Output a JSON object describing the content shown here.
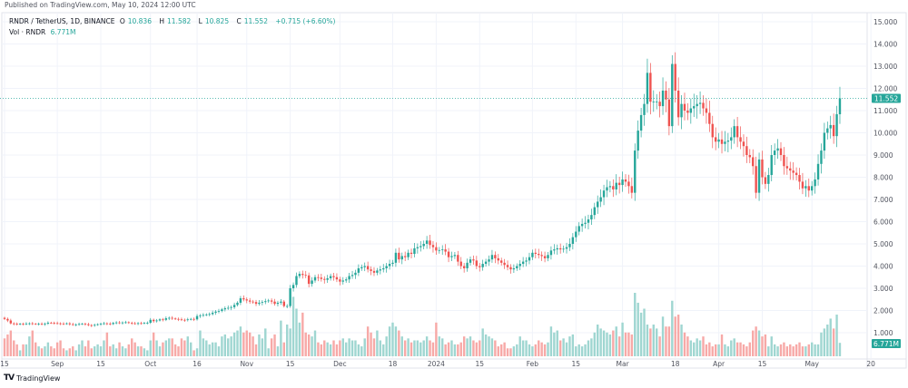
{
  "published": "Published on TradingView.com, May 10, 2024 12:00 UTC",
  "legend": {
    "symbol": "RNDR / TetherUS, 1D, BINANCE",
    "o_label": "O",
    "o": "10.836",
    "h_label": "H",
    "h": "11.582",
    "l_label": "L",
    "l": "10.825",
    "c_label": "C",
    "c": "11.552",
    "change": "+0.715 (+6.60%)",
    "vol_label": "Vol · RNDR",
    "vol": "6.771M"
  },
  "footer": {
    "logo": "TV",
    "brand": "TradingView"
  },
  "colors": {
    "up": "#26a69a",
    "down": "#ef5350",
    "up_volume": "#9fd6d1",
    "down_volume": "#f7a9a7",
    "grid": "#f0f3fa",
    "text": "#50535e"
  },
  "chart_data": {
    "type": "candlestick",
    "start_date": "2023-08-15",
    "interval": "1D",
    "ylim": [
      0,
      15.4
    ],
    "grid": true,
    "price_ticks": [
      "15.000",
      "14.000",
      "13.000",
      "12.000",
      "11.000",
      "10.000",
      "9.000",
      "8.000",
      "7.000",
      "6.000",
      "5.000",
      "4.000",
      "3.000",
      "2.000",
      "1.000"
    ],
    "price_tick_values": [
      15,
      14,
      13,
      12,
      11,
      10,
      9,
      8,
      7,
      6,
      5,
      4,
      3,
      2,
      1
    ],
    "last_price_label": "11.552",
    "last_price": 11.552,
    "last_volume_label": "6.771M",
    "time_ticks": [
      {
        "label": "15",
        "date": "2023-08-15"
      },
      {
        "label": "Sep",
        "date": "2023-09-01"
      },
      {
        "label": "15",
        "date": "2023-09-15"
      },
      {
        "label": "Oct",
        "date": "2023-10-01"
      },
      {
        "label": "16",
        "date": "2023-10-16"
      },
      {
        "label": "Nov",
        "date": "2023-11-01"
      },
      {
        "label": "15",
        "date": "2023-11-15"
      },
      {
        "label": "Dec",
        "date": "2023-12-01"
      },
      {
        "label": "18",
        "date": "2023-12-18"
      },
      {
        "label": "2024",
        "date": "2024-01-01"
      },
      {
        "label": "15",
        "date": "2024-01-15"
      },
      {
        "label": "Feb",
        "date": "2024-02-01"
      },
      {
        "label": "15",
        "date": "2024-02-15"
      },
      {
        "label": "Mar",
        "date": "2024-03-01"
      },
      {
        "label": "18",
        "date": "2024-03-18"
      },
      {
        "label": "Apr",
        "date": "2024-04-01"
      },
      {
        "label": "15",
        "date": "2024-04-15"
      },
      {
        "label": "May",
        "date": "2024-05-01"
      },
      {
        "label": "20",
        "date": "2024-05-20"
      }
    ],
    "closes": [
      1.62,
      1.55,
      1.42,
      1.4,
      1.38,
      1.4,
      1.39,
      1.41,
      1.42,
      1.4,
      1.39,
      1.4,
      1.38,
      1.41,
      1.45,
      1.44,
      1.43,
      1.42,
      1.41,
      1.4,
      1.42,
      1.38,
      1.36,
      1.37,
      1.39,
      1.4,
      1.38,
      1.34,
      1.32,
      1.35,
      1.38,
      1.4,
      1.42,
      1.41,
      1.39,
      1.44,
      1.46,
      1.44,
      1.46,
      1.47,
      1.44,
      1.42,
      1.41,
      1.43,
      1.42,
      1.44,
      1.45,
      1.58,
      1.52,
      1.55,
      1.6,
      1.58,
      1.65,
      1.67,
      1.64,
      1.62,
      1.6,
      1.58,
      1.57,
      1.6,
      1.62,
      1.6,
      1.75,
      1.78,
      1.8,
      1.82,
      1.84,
      1.9,
      1.95,
      1.98,
      2.05,
      2.1,
      2.12,
      2.15,
      2.25,
      2.35,
      2.55,
      2.5,
      2.45,
      2.4,
      2.38,
      2.3,
      2.35,
      2.38,
      2.42,
      2.45,
      2.4,
      2.3,
      2.35,
      2.4,
      2.2,
      2.2,
      3.0,
      3.15,
      3.55,
      3.65,
      3.6,
      3.58,
      3.2,
      3.35,
      3.5,
      3.48,
      3.42,
      3.38,
      3.45,
      3.55,
      3.5,
      3.4,
      3.3,
      3.35,
      3.4,
      3.55,
      3.6,
      3.7,
      3.9,
      3.95,
      4.0,
      3.85,
      3.78,
      3.7,
      3.8,
      3.85,
      3.9,
      4.0,
      4.1,
      4.15,
      4.6,
      4.3,
      4.45,
      4.4,
      4.6,
      4.55,
      4.8,
      4.85,
      4.9,
      5.0,
      5.15,
      4.95,
      4.85,
      4.7,
      4.72,
      4.75,
      4.65,
      4.4,
      4.45,
      4.5,
      4.2,
      4.0,
      3.9,
      4.15,
      4.3,
      4.25,
      4.0,
      3.95,
      4.1,
      4.2,
      4.3,
      4.5,
      4.35,
      4.25,
      4.15,
      4.05,
      3.95,
      3.85,
      3.9,
      4.0,
      4.1,
      4.2,
      4.25,
      4.4,
      4.6,
      4.55,
      4.5,
      4.45,
      4.35,
      4.5,
      4.7,
      4.75,
      4.8,
      4.75,
      4.78,
      4.85,
      5.0,
      5.3,
      5.55,
      5.8,
      5.9,
      5.95,
      6.1,
      6.3,
      6.65,
      6.9,
      7.1,
      7.4,
      7.55,
      7.6,
      7.45,
      7.75,
      7.65,
      7.9,
      7.8,
      7.6,
      7.3,
      9.2,
      10.1,
      10.8,
      11.3,
      12.7,
      11.4,
      11.4,
      11.4,
      11.2,
      11.9,
      11.5,
      10.3,
      13.1,
      11.9,
      10.7,
      11.3,
      11.0,
      10.9,
      11.1,
      11.2,
      11.3,
      11.35,
      11.1,
      10.9,
      10.4,
      9.8,
      9.6,
      9.7,
      9.5,
      9.6,
      9.65,
      9.8,
      10.3,
      9.8,
      9.6,
      9.4,
      9.0,
      8.9,
      8.5,
      7.3,
      8.8,
      8.0,
      7.7,
      8.1,
      9.0,
      9.2,
      9.3,
      9.0,
      8.5,
      8.4,
      8.3,
      8.2,
      8.1,
      7.8,
      7.5,
      7.6,
      7.4,
      7.6,
      7.9,
      8.6,
      9.2,
      10.0,
      10.2,
      10.35,
      9.85,
      10.836,
      11.552
    ],
    "volumes_millions": [
      9,
      11,
      13,
      8,
      6,
      3,
      6,
      6,
      10,
      13,
      7,
      5,
      4,
      5,
      7,
      5,
      4,
      7,
      8,
      4,
      3,
      4,
      5,
      3,
      6,
      8,
      5,
      8,
      4,
      5,
      6,
      5,
      8,
      12,
      5,
      6,
      4,
      7,
      5,
      4,
      6,
      9,
      7,
      5,
      5,
      4,
      3,
      8,
      12,
      8,
      5,
      7,
      8,
      9,
      9,
      6,
      5,
      9,
      8,
      10,
      7,
      3,
      4,
      13,
      9,
      8,
      6,
      7,
      7,
      5,
      10,
      11,
      9,
      10,
      12,
      13,
      15,
      12,
      13,
      12,
      10,
      6,
      11,
      9,
      14,
      4,
      9,
      11,
      5,
      18,
      7,
      16,
      14,
      30,
      24,
      17,
      22,
      12,
      11,
      10,
      13,
      7,
      6,
      8,
      7,
      6,
      8,
      6,
      8,
      9,
      7,
      9,
      8,
      8,
      6,
      5,
      9,
      15,
      12,
      9,
      13,
      8,
      6,
      10,
      15,
      17,
      15,
      13,
      10,
      8,
      9,
      7,
      8,
      8,
      7,
      8,
      10,
      8,
      7,
      17,
      10,
      9,
      6,
      7,
      8,
      6,
      6,
      7,
      10,
      9,
      10,
      8,
      7,
      8,
      14,
      11,
      10,
      9,
      8,
      5,
      6,
      7,
      4,
      4,
      5,
      6,
      10,
      8,
      8,
      6,
      5,
      6,
      8,
      7,
      6,
      7,
      15,
      12,
      13,
      8,
      9,
      7,
      10,
      11,
      5,
      6,
      5,
      6,
      8,
      9,
      12,
      16,
      14,
      13,
      12,
      11,
      13,
      15,
      10,
      17,
      12,
      12,
      11,
      32,
      27,
      22,
      24,
      16,
      14,
      16,
      14,
      10,
      20,
      15,
      15,
      28,
      20,
      21,
      16,
      12,
      10,
      8,
      7,
      9,
      8,
      10,
      6,
      7,
      5,
      6,
      6,
      11,
      6,
      5,
      8,
      9,
      7,
      7,
      6,
      5,
      7,
      13,
      15,
      13,
      10,
      11,
      5,
      10,
      6,
      5,
      6,
      7,
      5,
      6,
      5,
      6,
      7,
      5,
      5,
      6,
      7,
      6,
      6,
      12,
      14,
      16,
      19,
      14,
      21,
      6.771
    ]
  }
}
